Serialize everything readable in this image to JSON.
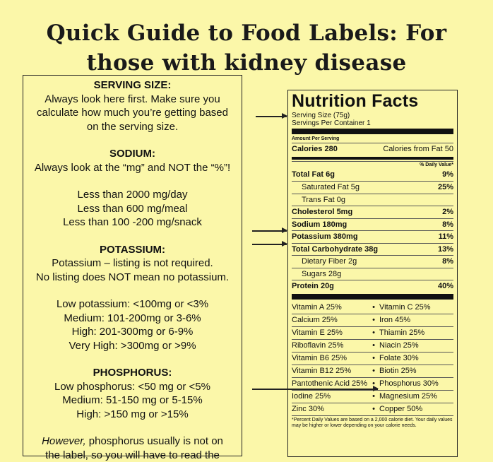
{
  "title": {
    "line1": "Quick Guide to Food Labels: For",
    "line2": "those with kidney disease"
  },
  "guide": {
    "serving": {
      "heading": "SERVING SIZE:",
      "lines": [
        "Always look here first.  Make sure you",
        "calculate how much you’re getting based",
        "on the serving size."
      ]
    },
    "sodium": {
      "heading": "SODIUM:",
      "intro": "Always look at the “mg” and NOT the “%”!",
      "limits": [
        "Less than 2000 mg/day",
        "Less than 600 mg/meal",
        "Less than 100 -200 mg/snack"
      ]
    },
    "potassium": {
      "heading": "POTASSIUM:",
      "lines": [
        "Potassium – listing is not required.",
        "No listing does NOT mean no potassium."
      ],
      "levels": [
        "Low potassium: <100mg or <3%",
        "Medium: 101-200mg or 3-6%",
        "High: 201-300mg or 6-9%",
        "Very High: >300mg or >9%"
      ]
    },
    "phosphorus": {
      "heading": "PHOSPHORUS:",
      "levels": [
        "Low phosphorus: <50 mg or <5%",
        "Medium: 51-150 mg or 5-15%",
        "High: >150 mg or >15%"
      ],
      "note_italic": "However,",
      "note_rest": " phosphorus usually is not on",
      "note_line2": "the label, so you will have to read the"
    }
  },
  "nutrition": {
    "title": "Nutrition Facts",
    "serving_size": "Serving Size  (75g)",
    "servings_per": "Servings Per Container 1",
    "amount_per": "Amount Per Serving",
    "calories": "Calories 280",
    "calories_fat": "Calories from Fat 50",
    "daily_value": "% Daily Value*",
    "rows": [
      {
        "label": "Total Fat 6g",
        "value": "9%",
        "bold": true,
        "indent": false
      },
      {
        "label": "Saturated Fat 5g",
        "value": "25%",
        "bold": false,
        "indent": true
      },
      {
        "label": "Trans Fat 0g",
        "value": "",
        "bold": false,
        "indent": true
      },
      {
        "label": "Cholesterol 5mg",
        "value": "2%",
        "bold": true,
        "indent": false
      },
      {
        "label": "Sodium 180mg",
        "value": "8%",
        "bold": true,
        "indent": false
      },
      {
        "label": "Potassium 380mg",
        "value": "11%",
        "bold": true,
        "indent": false
      },
      {
        "label": "Total Carbohydrate 38g",
        "value": "13%",
        "bold": true,
        "indent": false
      },
      {
        "label": "Dietary Fiber 2g",
        "value": "8%",
        "bold": false,
        "indent": true
      },
      {
        "label": "Sugars 28g",
        "value": "",
        "bold": false,
        "indent": true
      },
      {
        "label": "Protein 20g",
        "value": "40%",
        "bold": true,
        "indent": false
      }
    ],
    "vitamins": [
      [
        "Vitamin A 25%",
        "Vitamin C 25%"
      ],
      [
        "Calcium 25%",
        "Iron 45%"
      ],
      [
        "Vitamin E 25%",
        "Thiamin 25%"
      ],
      [
        "Riboflavin 25%",
        "Niacin 25%"
      ],
      [
        "Vitamin B6 25%",
        "Folate 30%"
      ],
      [
        "Vitamin B12 25%",
        "Biotin 25%"
      ],
      [
        "Pantothenic Acid 25%",
        "Phosphorus 30%"
      ],
      [
        "Iodine 25%",
        "Magnesium 25%"
      ],
      [
        "Zinc 30%",
        "Copper 50%"
      ]
    ],
    "bullet": "•",
    "footnote": "*Percent Daily Values are based on a 2,000 calorie diet. Your daily values may be higher or lower depending on your calorie needs."
  }
}
